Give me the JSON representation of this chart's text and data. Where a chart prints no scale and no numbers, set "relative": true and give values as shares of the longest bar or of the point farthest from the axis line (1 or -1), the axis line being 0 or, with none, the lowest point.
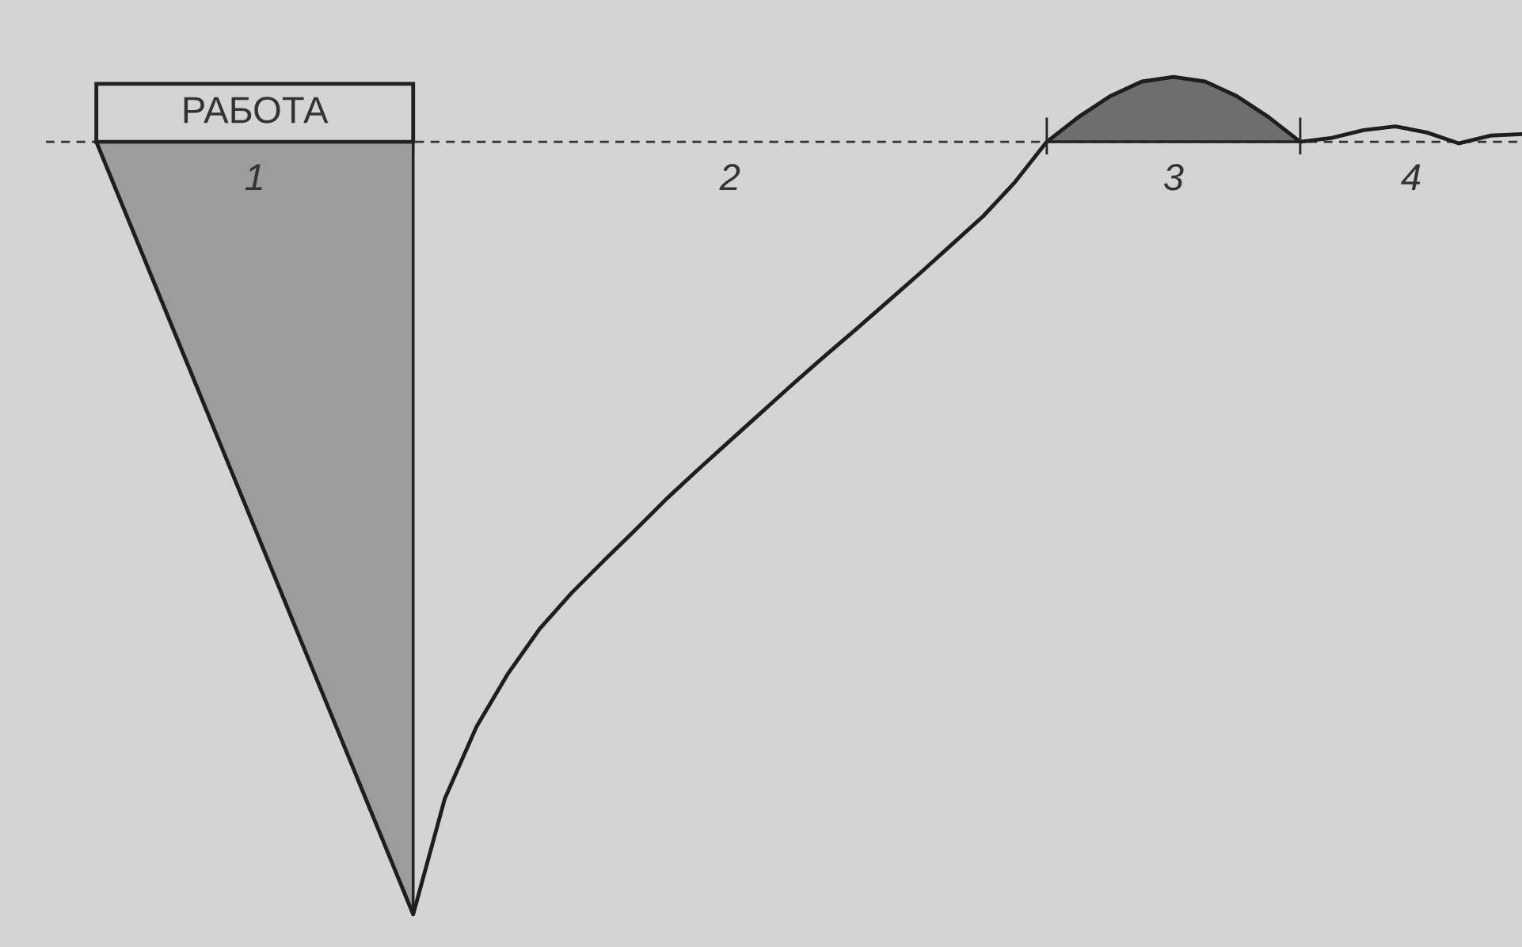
{
  "chart_data": {
    "type": "line",
    "relative": true,
    "categories": [
      null,
      null,
      null,
      null,
      null,
      null,
      null,
      null,
      null,
      null,
      null,
      null,
      null,
      null,
      null,
      null,
      null,
      null,
      null,
      null,
      null,
      null,
      null,
      null,
      null,
      null,
      null,
      null,
      null,
      null,
      null,
      null,
      null,
      null,
      null,
      null,
      null,
      null,
      null,
      null,
      null,
      null,
      null,
      null,
      null,
      null
    ],
    "series": [
      {
        "type": "area",
        "color": "#9c9c9c",
        "values": [
          0,
          -0.1,
          -0.2,
          -0.3,
          -0.4,
          -0.5,
          -0.6,
          -0.7,
          -0.8,
          -0.9,
          -1,
          null,
          null,
          null,
          null,
          null,
          null,
          null,
          null,
          null,
          null,
          null,
          null,
          null,
          null,
          null,
          null,
          null,
          null,
          null,
          null,
          null,
          null,
          null,
          null,
          null,
          null,
          null,
          null,
          null,
          null,
          null,
          null,
          null,
          null,
          null
        ]
      },
      {
        "type": "area",
        "color": "#6e6e6e",
        "values": [
          null,
          null,
          null,
          null,
          null,
          null,
          null,
          null,
          null,
          null,
          null,
          null,
          null,
          null,
          null,
          null,
          null,
          null,
          null,
          null,
          null,
          null,
          null,
          null,
          null,
          null,
          null,
          null,
          null,
          null,
          0,
          0.032,
          0.059,
          0.078,
          0.084,
          0.078,
          0.059,
          0.032,
          0,
          null,
          null,
          null,
          null,
          null,
          null,
          null
        ]
      },
      {
        "color": "#1e1e1e",
        "values": [
          0,
          -0.1,
          -0.2,
          -0.3,
          -0.4,
          -0.5,
          -0.6,
          -0.7,
          -0.8,
          -0.9,
          -1,
          -0.85,
          -0.757,
          -0.688,
          -0.63,
          -0.584,
          -0.543,
          -0.503,
          -0.462,
          -0.424,
          -0.387,
          -0.35,
          -0.313,
          -0.277,
          -0.242,
          -0.206,
          -0.17,
          -0.133,
          -0.096,
          -0.052,
          0,
          0.032,
          0.059,
          0.078,
          0.084,
          0.078,
          0.059,
          0.032,
          0,
          0.005,
          0.015,
          0.02,
          0.012,
          -0.002,
          0.008,
          0.01
        ]
      }
    ],
    "ref_lines": [
      {
        "axis": "y",
        "value": 0,
        "line_style": "dashed",
        "color": "#333333"
      }
    ],
    "annotations": [
      "РАБОТА",
      "1",
      "2",
      "3",
      "4"
    ]
  }
}
